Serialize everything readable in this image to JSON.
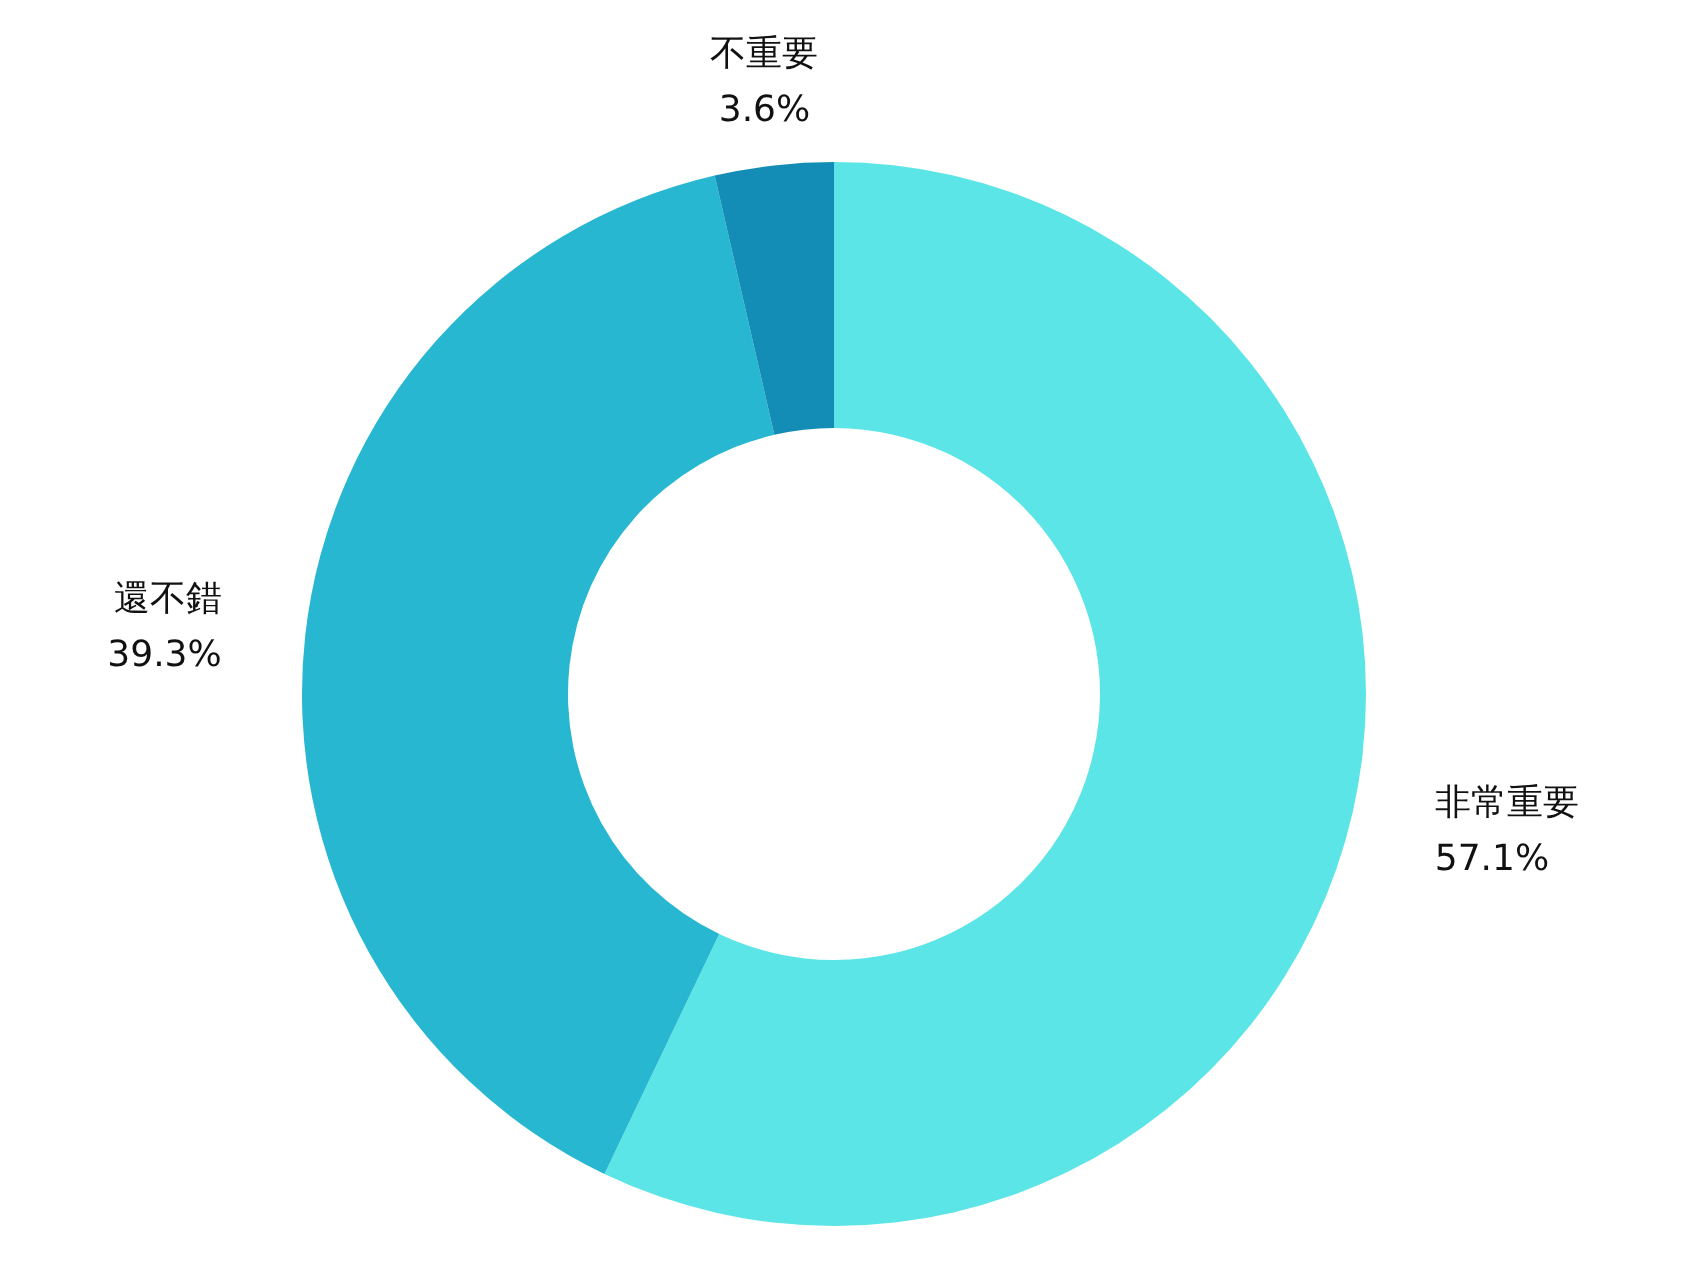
{
  "chart_data": {
    "type": "donut",
    "categories": [
      "非常重要",
      "還不錯",
      "不重要"
    ],
    "values": [
      57.1,
      39.3,
      3.6
    ],
    "colors": [
      "#5ce5e6",
      "#27b7d1",
      "#138db5"
    ],
    "value_labels": [
      "57.1%",
      "39.3%",
      "3.6%"
    ],
    "legend": false
  }
}
